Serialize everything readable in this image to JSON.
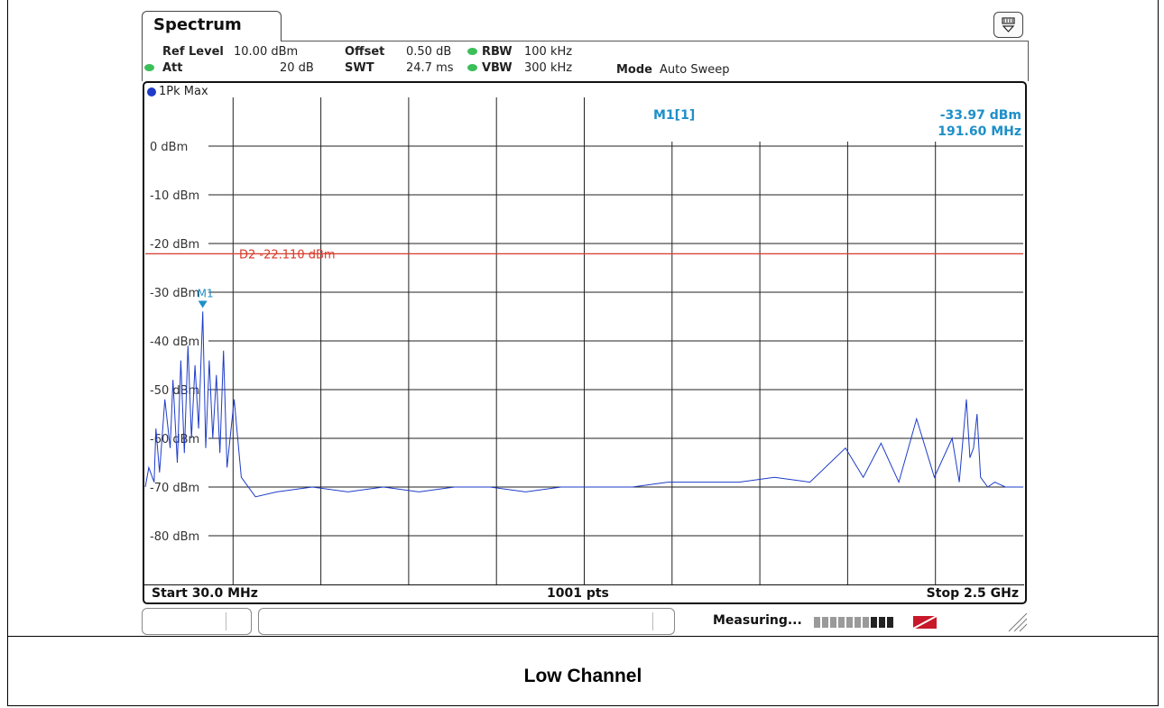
{
  "tab": {
    "title": "Spectrum"
  },
  "settings": {
    "ref_level_label": "Ref Level",
    "ref_level_value": "10.00 dBm",
    "offset_label": "Offset",
    "offset_value": "0.50 dB",
    "rbw_label": "RBW",
    "rbw_value": "100 kHz",
    "att_label": "Att",
    "att_value": "20 dB",
    "swt_label": "SWT",
    "swt_value": "24.7 ms",
    "vbw_label": "VBW",
    "vbw_value": "300 kHz",
    "mode_label": "Mode",
    "mode_value": "Auto Sweep"
  },
  "trace": {
    "label": "1Pk Max",
    "color": "#1e3cc8"
  },
  "marker": {
    "name": "M1[1]",
    "level": "-33.97 dBm",
    "freq": "191.60 MHz",
    "tag": "M1",
    "color": "#1e8fc8"
  },
  "display_line": {
    "label": "D2  -22.110 dBm",
    "color": "#d83a2a"
  },
  "footer": {
    "start": "Start 30.0 MHz",
    "points": "1001 pts",
    "stop": "Stop 2.5 GHz"
  },
  "status": {
    "text": "Measuring..."
  },
  "caption": "Low Channel",
  "chart_data": {
    "type": "line",
    "y_unit": "dBm",
    "y_ticks": [
      "0 dBm",
      "-10 dBm",
      "-20 dBm",
      "-30 dBm",
      "-40 dBm",
      "-50 dBm",
      "-60 dBm",
      "-70 dBm",
      "-80 dBm"
    ],
    "ylim": [
      -90,
      10
    ],
    "xlim_mhz": [
      30,
      2500
    ],
    "display_line_dbm": -22.11,
    "marker": {
      "x_mhz": 191.6,
      "y_dbm": -33.97
    },
    "series": [
      {
        "x_mhz": [
          30,
          40,
          55,
          60,
          70,
          85,
          100,
          108,
          120,
          130,
          140,
          150,
          160,
          170,
          180,
          191.6,
          200,
          210,
          220,
          230,
          240,
          250,
          260,
          280,
          300,
          340,
          400,
          500,
          600,
          700,
          800,
          900,
          1000,
          1100,
          1200,
          1300,
          1400,
          1500,
          1600,
          1700,
          1800,
          1900,
          2000,
          2050,
          2100,
          2150,
          2200,
          2250,
          2300,
          2320,
          2340,
          2350,
          2360,
          2370,
          2380,
          2400,
          2420,
          2450,
          2480,
          2500
        ],
        "y_dbm": [
          -70,
          -66,
          -69,
          -58,
          -67,
          -52,
          -62,
          -48,
          -65,
          -44,
          -63,
          -41,
          -60,
          -45,
          -58,
          -33.97,
          -62,
          -44,
          -60,
          -47,
          -63,
          -42,
          -66,
          -52,
          -68,
          -72,
          -71,
          -70,
          -71,
          -70,
          -71,
          -70,
          -70,
          -71,
          -70,
          -70,
          -70,
          -69,
          -69,
          -69,
          -68,
          -69,
          -62,
          -68,
          -61,
          -69,
          -56,
          -68,
          -60,
          -69,
          -52,
          -64,
          -62,
          -55,
          -68,
          -70,
          -69,
          -70,
          -70,
          -70
        ]
      }
    ]
  }
}
